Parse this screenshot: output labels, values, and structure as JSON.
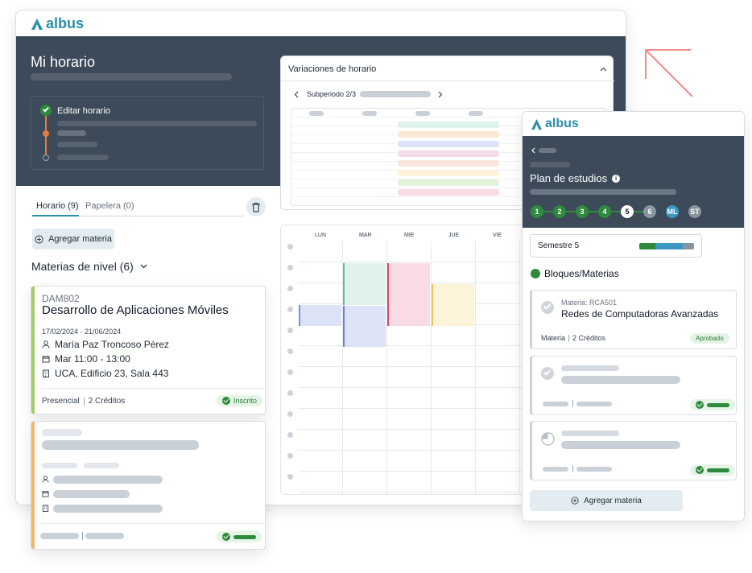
{
  "brand": {
    "name": "albus",
    "color": "#2b8fa8"
  },
  "main_window": {
    "title": "Mi horario",
    "timeline": {
      "step1_label": "Editar horario"
    },
    "tabs": [
      {
        "label": "Horario (9)",
        "active": true
      },
      {
        "label": "Papelera (0)",
        "active": false
      }
    ],
    "add_button": "Agregar materia",
    "section_title": "Materias de nivel (6)",
    "course_card": {
      "code": "DAM802",
      "name": "Desarrollo de Aplicaciones Móviles",
      "dates": "17/02/2024 - 21/06/2024",
      "teacher": "María Paz Troncoso Pérez",
      "schedule": "Mar 11:00 - 13:00",
      "location": "UCA, Edificio 23, Sala 443",
      "modality": "Presencial",
      "credits": "2 Créditos",
      "status": "Inscrito",
      "accent": "#9fcf6a"
    },
    "second_card_accent": "#f2b66d"
  },
  "variations_panel": {
    "title": "Variaciones de horario",
    "subperiod": "Subperiodo 2/3"
  },
  "calendar": {
    "days": [
      "LUN",
      "MAR",
      "MIE",
      "JUE",
      "VIE"
    ],
    "colors": {
      "blue": "#dde3f7",
      "green": "#dff2ec",
      "pink": "#f9dbe3",
      "yellow": "#fdf3d9"
    }
  },
  "study_plan": {
    "title": "Plan de estudios",
    "steps": [
      {
        "label": "1",
        "state": "done"
      },
      {
        "label": "2",
        "state": "done"
      },
      {
        "label": "3",
        "state": "done"
      },
      {
        "label": "4",
        "state": "done"
      },
      {
        "label": "5",
        "state": "current"
      },
      {
        "label": "6",
        "state": "pending"
      },
      {
        "label": "ML",
        "state": "special"
      },
      {
        "label": "ST",
        "state": "pending"
      }
    ],
    "semester": "Semestre 5",
    "blocks_title": "Bloques/Materias",
    "subject": {
      "code": "Materia: RCA501",
      "name": "Redes de Computadoras Avanzadas",
      "type": "Materia",
      "credits": "2 Créditos",
      "status": "Aprobado"
    },
    "add_button": "Agregar materia"
  },
  "decoration": {
    "arrow_color": "#f08a8a"
  }
}
